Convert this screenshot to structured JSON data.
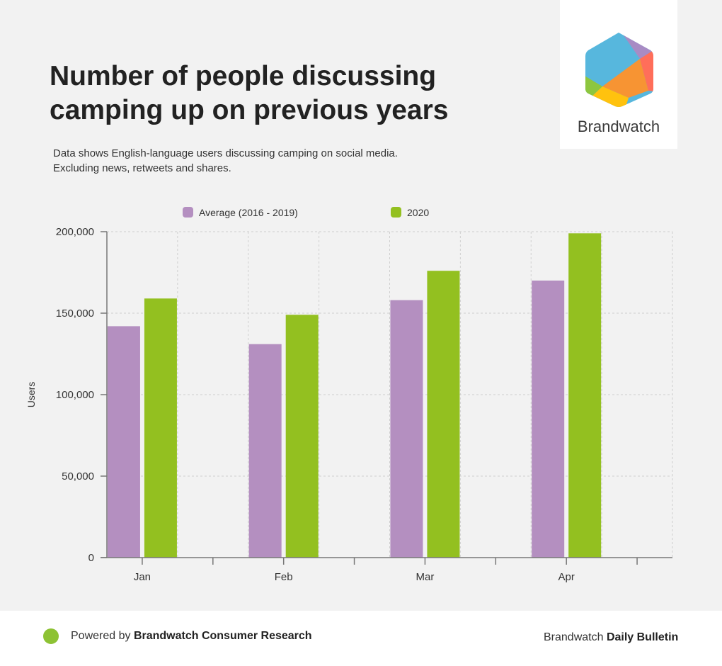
{
  "header": {
    "title_line1": "Number of people discussing",
    "title_line2": "camping up on previous years",
    "subtitle_line1": "Data shows English-language users discussing camping on social media.",
    "subtitle_line2": "Excluding news, retweets and shares."
  },
  "logo": {
    "name": "Brandwatch",
    "icon": "brandwatch-hexagon-logo",
    "colors": [
      "#57b7dd",
      "#a88bc4",
      "#ff6e5a",
      "#f79433",
      "#ffc20e",
      "#8dc63f"
    ]
  },
  "footer": {
    "powered_prefix": "Powered by ",
    "powered_brand": "Brandwatch Consumer Research",
    "right_prefix": "Brandwatch ",
    "right_brand": "Daily Bulletin",
    "dot_color": "#8dc234"
  },
  "chart_data": {
    "type": "bar",
    "title": "Number of people discussing camping up on previous years",
    "xlabel": "",
    "ylabel": "Users",
    "categories": [
      "Jan",
      "Feb",
      "Mar",
      "Apr"
    ],
    "series": [
      {
        "name": "Average (2016 - 2019)",
        "color": "#b48fc0",
        "values": [
          142000,
          131000,
          158000,
          170000
        ]
      },
      {
        "name": "2020",
        "color": "#93c020",
        "values": [
          159000,
          149000,
          176000,
          199000
        ]
      }
    ],
    "ylim": [
      0,
      200000
    ],
    "yticks": [
      0,
      50000,
      100000,
      150000,
      200000
    ],
    "ytick_labels": [
      "0",
      "50,000",
      "100,000",
      "150,000",
      "200,000"
    ],
    "grid": true,
    "legend_position": "top"
  }
}
